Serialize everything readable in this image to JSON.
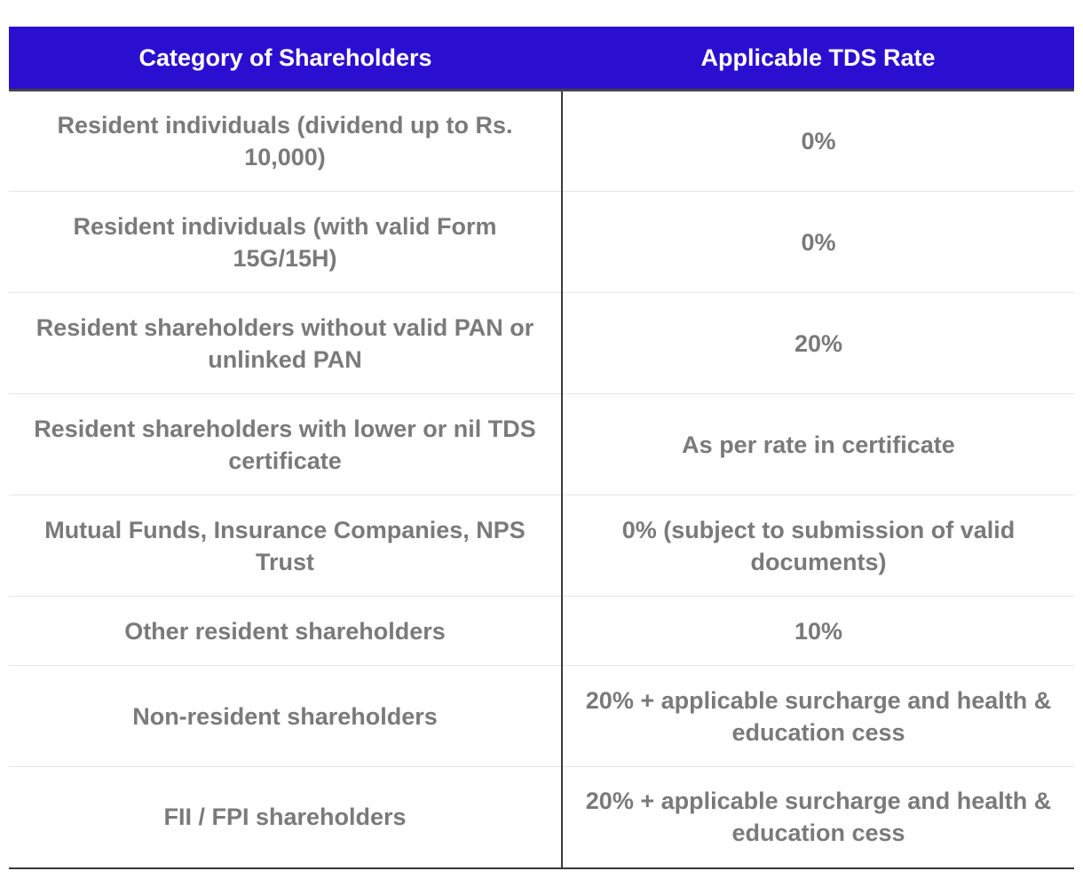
{
  "table": {
    "headers": [
      "Category of Shareholders",
      "Applicable TDS Rate"
    ],
    "rows": [
      {
        "category": "Resident individuals (dividend up to Rs. 10,000)",
        "rate": "0%"
      },
      {
        "category": "Resident individuals (with valid Form 15G/15H)",
        "rate": "0%"
      },
      {
        "category": "Resident shareholders without valid PAN or unlinked PAN",
        "rate": "20%"
      },
      {
        "category": "Resident shareholders with lower or nil TDS certificate",
        "rate": "As per rate in certificate"
      },
      {
        "category": "Mutual Funds, Insurance Companies, NPS Trust",
        "rate": "0% (subject to submission of valid documents)"
      },
      {
        "category": "Other resident shareholders",
        "rate": "10%"
      },
      {
        "category": "Non-resident shareholders",
        "rate": "20% + applicable surcharge and health & education cess"
      },
      {
        "category": "FII / FPI shareholders",
        "rate": "20% + applicable surcharge and health & education cess"
      }
    ]
  }
}
